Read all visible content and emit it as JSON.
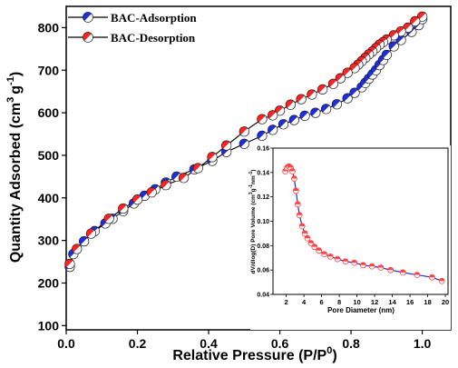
{
  "chart_data": [
    {
      "type": "scatter",
      "xlabel": "Relative Pressure (P/P",
      "xlabel_sup": "0",
      "xlabel_end": ")",
      "ylabel": "Quantity Adsorbed (cm",
      "ylabel_sup1": "3",
      "ylabel_mid": "g",
      "ylabel_sup2": "-1",
      "ylabel_end": ")",
      "xlim": [
        0.0,
        1.08
      ],
      "ylim": [
        90,
        850
      ],
      "xticks": [
        0.0,
        0.2,
        0.4,
        0.6,
        0.8,
        1.0
      ],
      "xtick_labels": [
        "0.0",
        "0.2",
        "0.4",
        "0.6",
        "0.8",
        "1.0"
      ],
      "yticks": [
        100,
        200,
        300,
        400,
        500,
        600,
        700,
        800
      ],
      "ytick_labels": [
        "100",
        "200",
        "300",
        "400",
        "500",
        "600",
        "700",
        "800"
      ],
      "grid": false,
      "legend_position": "top-left",
      "series": [
        {
          "name": "BAC-Adsorption",
          "color": "#1f2de0",
          "points": [
            [
              0.01,
              238
            ],
            [
              0.02,
              268
            ],
            [
              0.05,
              298
            ],
            [
              0.08,
              322
            ],
            [
              0.11,
              340
            ],
            [
              0.13,
              351
            ],
            [
              0.16,
              369
            ],
            [
              0.19,
              387
            ],
            [
              0.22,
              405
            ],
            [
              0.25,
              420
            ],
            [
              0.28,
              436
            ],
            [
              0.31,
              450
            ],
            [
              0.36,
              467
            ],
            [
              0.41,
              487
            ],
            [
              0.45,
              508
            ],
            [
              0.5,
              527
            ],
            [
              0.55,
              546
            ],
            [
              0.58,
              560
            ],
            [
              0.61,
              573
            ],
            [
              0.64,
              583
            ],
            [
              0.67,
              593
            ],
            [
              0.7,
              600
            ],
            [
              0.73,
              609
            ],
            [
              0.76,
              620
            ],
            [
              0.79,
              634
            ],
            [
              0.81,
              647
            ],
            [
              0.83,
              660
            ],
            [
              0.84,
              670
            ],
            [
              0.85,
              680
            ],
            [
              0.86,
              690
            ],
            [
              0.87,
              700
            ],
            [
              0.88,
              712
            ],
            [
              0.89,
              724
            ],
            [
              0.9,
              736
            ],
            [
              0.92,
              756
            ],
            [
              0.94,
              771
            ],
            [
              0.97,
              790
            ],
            [
              0.99,
              806
            ],
            [
              1.0,
              820
            ]
          ]
        },
        {
          "name": "BAC-Desorption",
          "color": "#ff2222",
          "points": [
            [
              1.0,
              826
            ],
            [
              0.98,
              815
            ],
            [
              0.96,
              800
            ],
            [
              0.94,
              791
            ],
            [
              0.92,
              782
            ],
            [
              0.9,
              772
            ],
            [
              0.89,
              766
            ],
            [
              0.88,
              760
            ],
            [
              0.87,
              752
            ],
            [
              0.86,
              744
            ],
            [
              0.85,
              737
            ],
            [
              0.84,
              729
            ],
            [
              0.83,
              721
            ],
            [
              0.82,
              713
            ],
            [
              0.81,
              705
            ],
            [
              0.79,
              694
            ],
            [
              0.77,
              681
            ],
            [
              0.75,
              668
            ],
            [
              0.72,
              655
            ],
            [
              0.69,
              643
            ],
            [
              0.66,
              632
            ],
            [
              0.63,
              619
            ],
            [
              0.6,
              605
            ],
            [
              0.58,
              594
            ],
            [
              0.55,
              585
            ],
            [
              0.5,
              556
            ],
            [
              0.45,
              523
            ],
            [
              0.41,
              496
            ],
            [
              0.37,
              470
            ],
            [
              0.33,
              447
            ],
            [
              0.28,
              430
            ],
            [
              0.24,
              413
            ],
            [
              0.2,
              396
            ],
            [
              0.16,
              375
            ],
            [
              0.12,
              351
            ],
            [
              0.07,
              316
            ],
            [
              0.03,
              280
            ],
            [
              0.01,
              245
            ]
          ]
        }
      ]
    },
    {
      "type": "scatter",
      "xlabel": "Pore Diameter (nm)",
      "ylabel": "dV/dlog(D) Pore Volume (cm",
      "ylabel_sup1": "3",
      "ylabel_mid": "g",
      "ylabel_sup2": "-1",
      "ylabel_mid2": "nm",
      "ylabel_sup3": "-1",
      "ylabel_end": ")",
      "xlim": [
        0.5,
        20.3
      ],
      "ylim": [
        0.04,
        0.16
      ],
      "xticks": [
        2,
        4,
        6,
        8,
        10,
        12,
        14,
        16,
        18,
        20
      ],
      "xtick_labels": [
        "2",
        "4",
        "6",
        "8",
        "10",
        "12",
        "14",
        "16",
        "18",
        "20"
      ],
      "yticks": [
        0.04,
        0.06,
        0.08,
        0.1,
        0.12,
        0.14,
        0.16
      ],
      "ytick_labels": [
        "0.04",
        "0.06",
        "0.08",
        "0.10",
        "0.12",
        "0.14",
        "0.16"
      ],
      "grid": false,
      "line_color": "#1f2de0",
      "marker_color": "#ff4444",
      "points": [
        [
          1.9,
          0.141
        ],
        [
          2.1,
          0.144
        ],
        [
          2.3,
          0.145
        ],
        [
          2.5,
          0.144
        ],
        [
          2.7,
          0.141
        ],
        [
          2.9,
          0.135
        ],
        [
          3.1,
          0.125
        ],
        [
          3.3,
          0.114
        ],
        [
          3.5,
          0.105
        ],
        [
          3.8,
          0.096
        ],
        [
          4.1,
          0.09
        ],
        [
          4.4,
          0.086
        ],
        [
          4.8,
          0.082
        ],
        [
          5.2,
          0.079
        ],
        [
          5.7,
          0.076
        ],
        [
          6.3,
          0.073
        ],
        [
          7.0,
          0.071
        ],
        [
          7.8,
          0.069
        ],
        [
          8.7,
          0.067
        ],
        [
          9.7,
          0.066
        ],
        [
          10.7,
          0.064
        ],
        [
          11.7,
          0.063
        ],
        [
          12.7,
          0.062
        ],
        [
          13.8,
          0.06
        ],
        [
          15.2,
          0.058
        ],
        [
          16.8,
          0.056
        ],
        [
          18.5,
          0.054
        ],
        [
          19.6,
          0.051
        ]
      ]
    }
  ]
}
